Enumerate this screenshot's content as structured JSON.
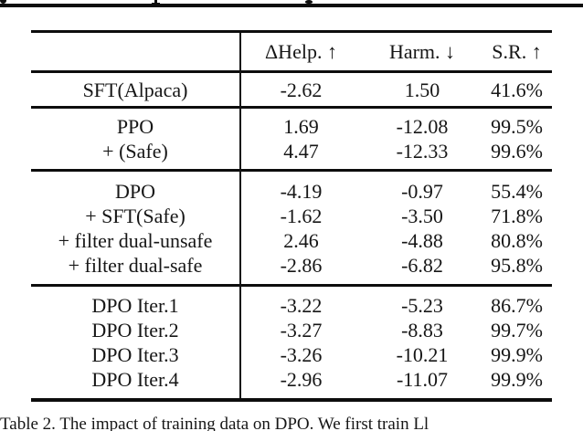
{
  "page": {
    "background": "#ffffff",
    "text_color": "#161616",
    "rule_color": "#0d0d0d"
  },
  "cropped_heading_above": {
    "description": "bottom sliver of a bold heading line cut off by the top edge; only descender fragments visible",
    "fragments": [
      "g",
      "p",
      "y"
    ]
  },
  "table": {
    "columns": [
      "ΔHelp. ↑",
      "Harm. ↓",
      "S.R. ↑"
    ],
    "groups": [
      {
        "rows": [
          {
            "label": "SFT(Alpaca)",
            "values": [
              "-2.62",
              "1.50",
              "41.6%"
            ]
          }
        ]
      },
      {
        "rows": [
          {
            "label": "PPO",
            "values": [
              "1.69",
              "-12.08",
              "99.5%"
            ]
          },
          {
            "label": "+ (Safe)",
            "values": [
              "4.47",
              "-12.33",
              "99.6%"
            ]
          }
        ]
      },
      {
        "rows": [
          {
            "label": "DPO",
            "values": [
              "-4.19",
              "-0.97",
              "55.4%"
            ]
          },
          {
            "label": "+ SFT(Safe)",
            "values": [
              "-1.62",
              "-3.50",
              "71.8%"
            ]
          },
          {
            "label": "+ filter dual-unsafe",
            "values": [
              "2.46",
              "-4.88",
              "80.8%"
            ]
          },
          {
            "label": "+ filter dual-safe",
            "values": [
              "-2.86",
              "-6.82",
              "95.8%"
            ]
          }
        ]
      },
      {
        "rows": [
          {
            "label": "DPO Iter.1",
            "values": [
              "-3.22",
              "-5.23",
              "86.7%"
            ]
          },
          {
            "label": "DPO Iter.2",
            "values": [
              "-3.27",
              "-8.83",
              "99.7%"
            ]
          },
          {
            "label": "DPO Iter.3",
            "values": [
              "-3.26",
              "-10.21",
              "99.9%"
            ]
          },
          {
            "label": "DPO Iter.4",
            "values": [
              "-2.96",
              "-11.07",
              "99.9%"
            ]
          }
        ]
      }
    ]
  },
  "caption": {
    "visible_text": "Table 2. The impact of training data on DPO. We first train Ll"
  }
}
